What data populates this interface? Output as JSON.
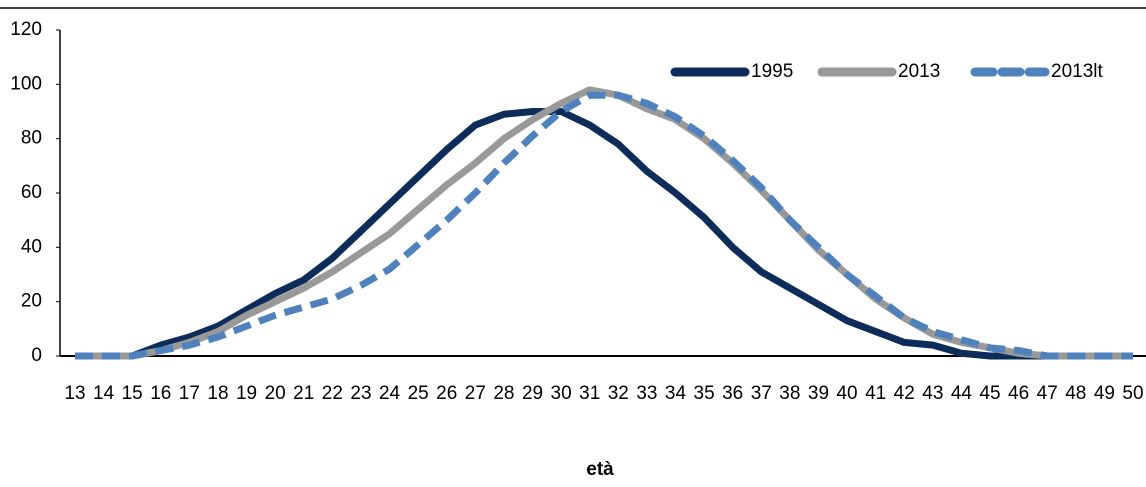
{
  "chart_data": {
    "type": "line",
    "x_label": "età",
    "categories": [
      "13",
      "14",
      "15",
      "16",
      "17",
      "18",
      "19",
      "20",
      "21",
      "22",
      "23",
      "24",
      "25",
      "26",
      "27",
      "28",
      "29",
      "30",
      "31",
      "32",
      "33",
      "34",
      "35",
      "36",
      "37",
      "38",
      "39",
      "40",
      "41",
      "42",
      "43",
      "44",
      "45",
      "46",
      "47",
      "48",
      "49",
      "50"
    ],
    "series": [
      {
        "name": "1995",
        "color": "#0d2c5a",
        "dash": "solid",
        "values": [
          0,
          0,
          0,
          4,
          7,
          11,
          17,
          23,
          28,
          36,
          46,
          56,
          66,
          76,
          85,
          89,
          90,
          90,
          85,
          78,
          68,
          60,
          51,
          40,
          31,
          25,
          19,
          13,
          9,
          5,
          4,
          1,
          0,
          0,
          0,
          0,
          0,
          0
        ]
      },
      {
        "name": "2013",
        "color": "#999999",
        "dash": "solid",
        "values": [
          0,
          0,
          0,
          2,
          5,
          9,
          15,
          20,
          25,
          31,
          38,
          45,
          54,
          63,
          71,
          80,
          87,
          93,
          98,
          96,
          91,
          87,
          80,
          71,
          61,
          50,
          39,
          30,
          21,
          14,
          8,
          5,
          3,
          1,
          0,
          0,
          0,
          0
        ]
      },
      {
        "name": "2013lt",
        "color": "#4f81bd",
        "dash": "dashed",
        "values": [
          0,
          0,
          0,
          2,
          4,
          7,
          11,
          15,
          18,
          21,
          26,
          32,
          41,
          50,
          60,
          71,
          81,
          90,
          96,
          96,
          93,
          88,
          81,
          72,
          62,
          50,
          40,
          30,
          22,
          14,
          9,
          6,
          3,
          2,
          0,
          0,
          0,
          0
        ]
      }
    ],
    "ylim": [
      0,
      120
    ],
    "yticks": [
      0,
      20,
      40,
      60,
      80,
      100,
      120
    ],
    "legend": "top-right"
  }
}
